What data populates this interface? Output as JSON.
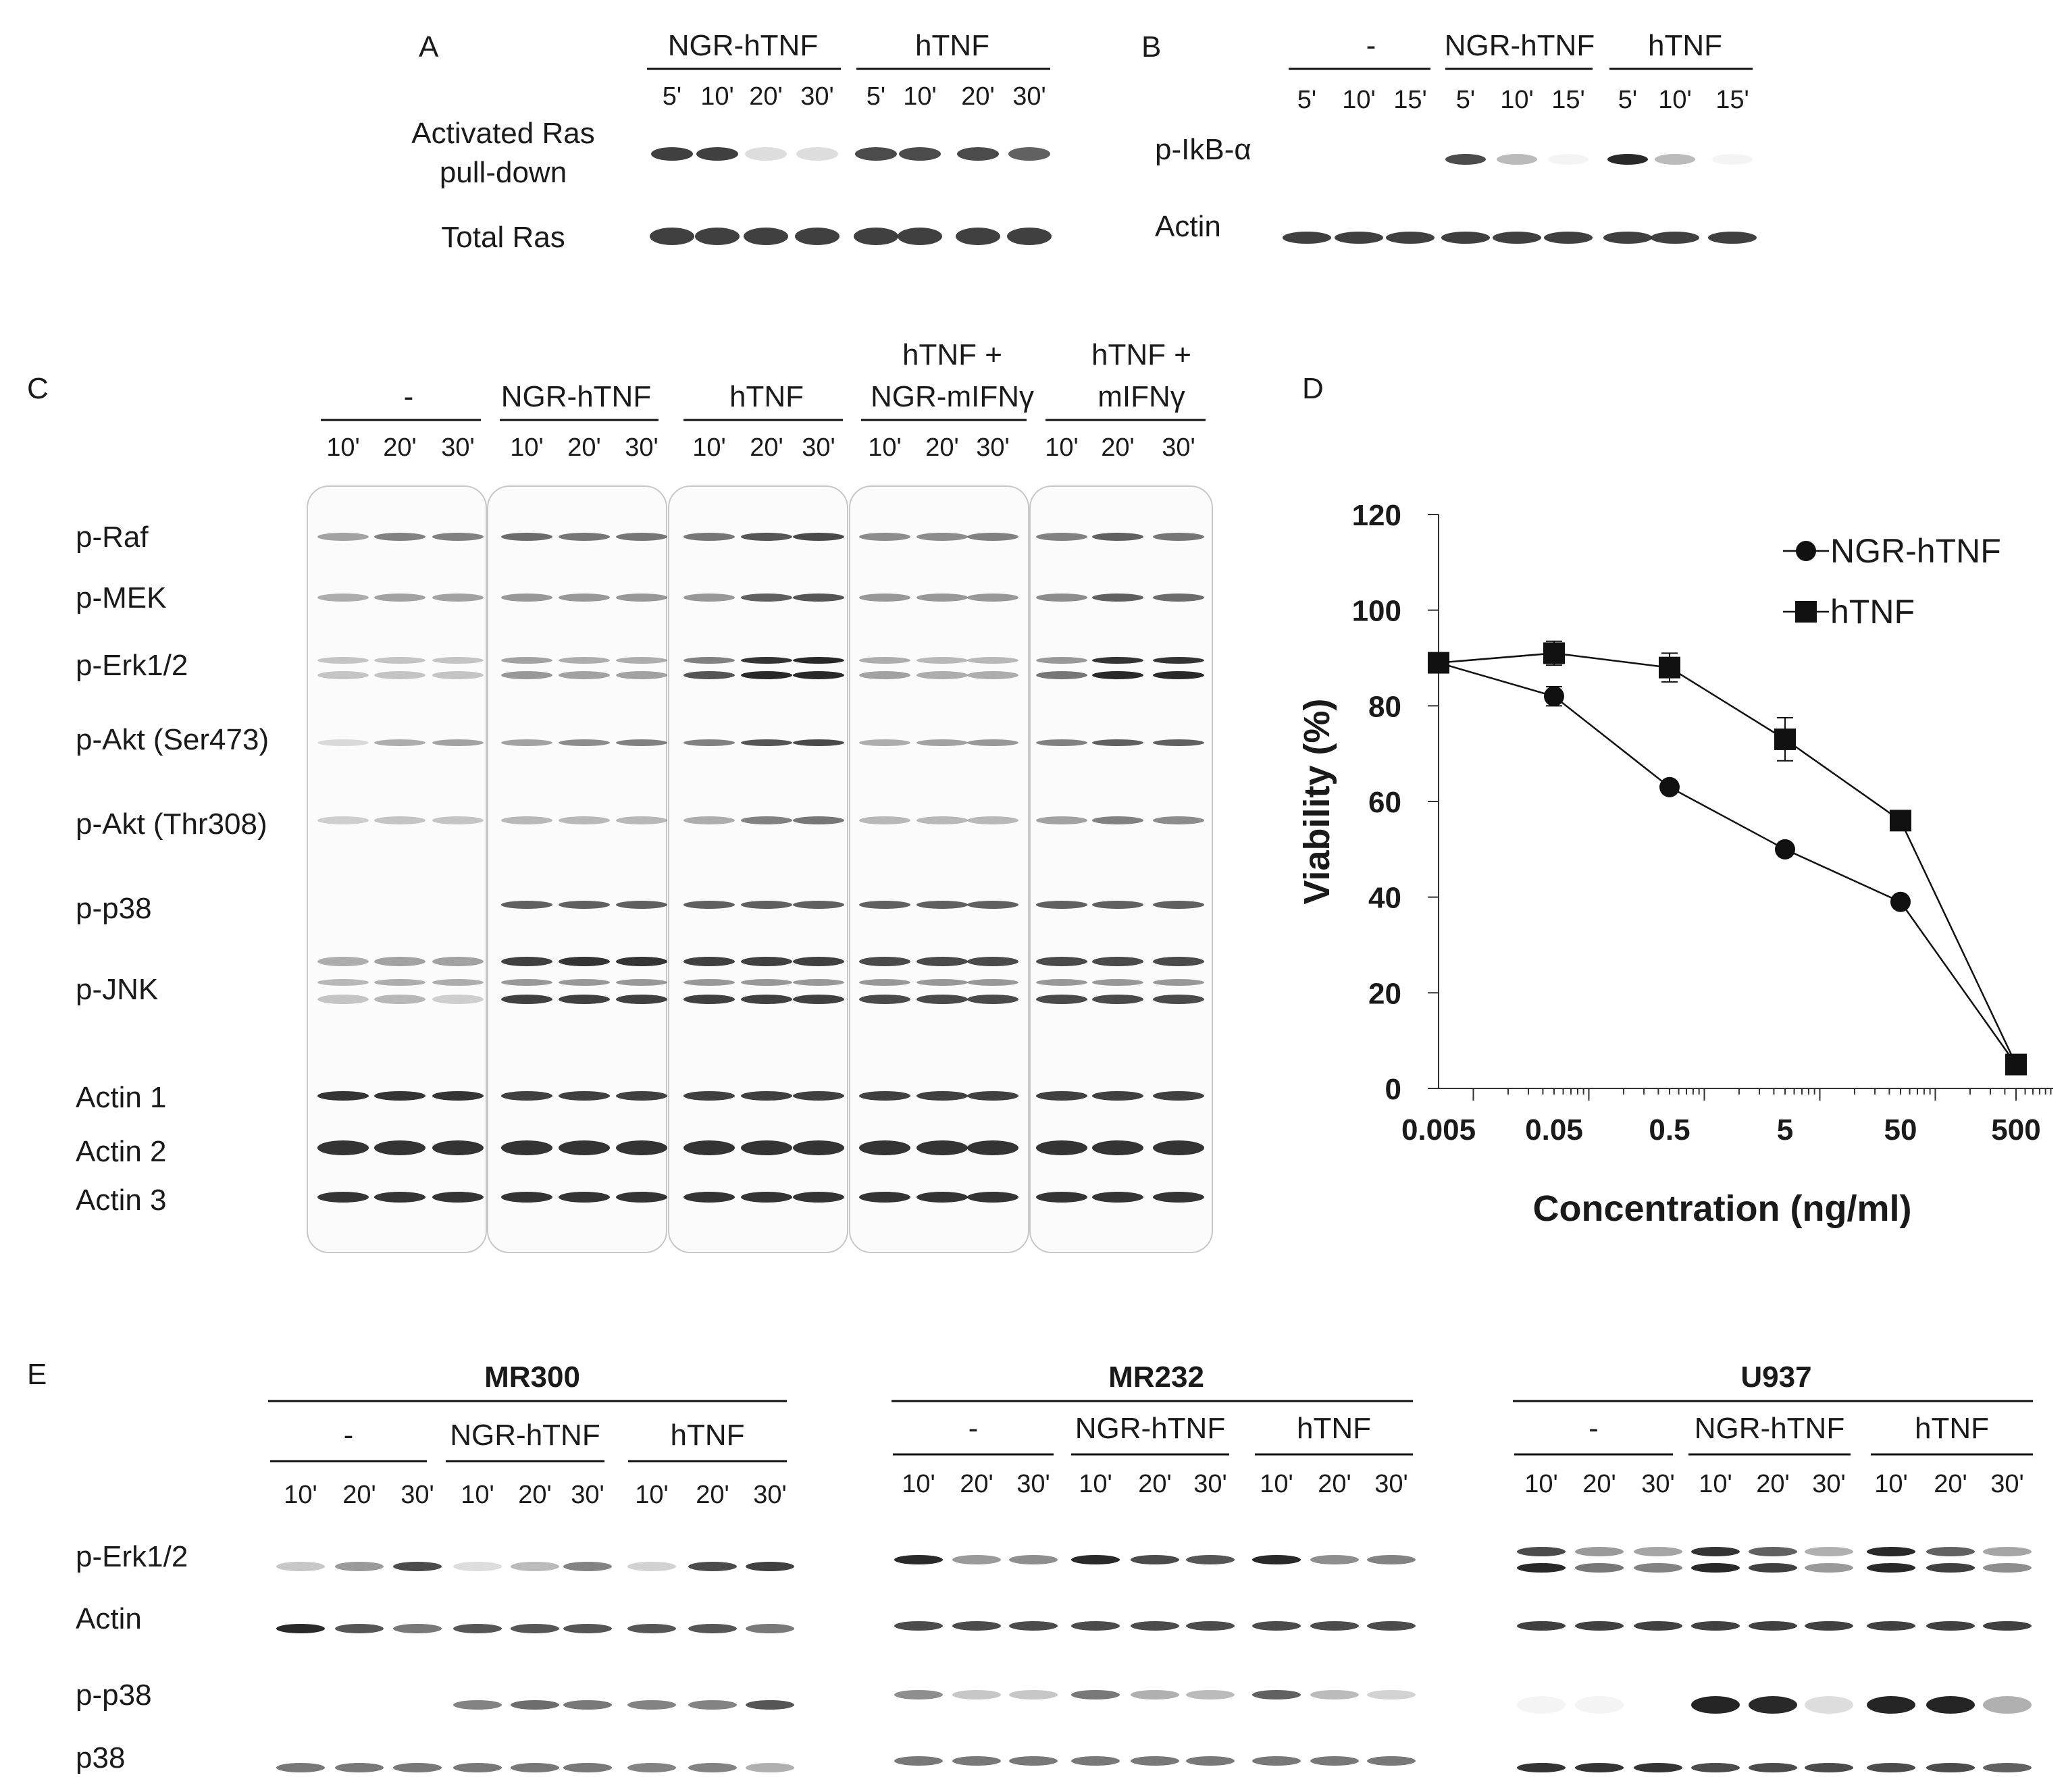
{
  "panelA": {
    "letter": "A",
    "groups": [
      "NGR-hTNF",
      "hTNF"
    ],
    "times": [
      "5'",
      "10'",
      "20'",
      "30'",
      "5'",
      "10'",
      "20'",
      "30'"
    ],
    "rows": [
      "Activated Ras",
      "pull-down",
      "Total Ras"
    ]
  },
  "panelB": {
    "letter": "B",
    "groups": [
      "-",
      "NGR-hTNF",
      "hTNF"
    ],
    "times": [
      "5'",
      "10'",
      "15'",
      "5'",
      "10'",
      "15'",
      "5'",
      "10'",
      "15'"
    ],
    "rows": [
      "p-IkB-α",
      "Actin"
    ]
  },
  "panelC": {
    "letter": "C",
    "groups": [
      "-",
      "NGR-hTNF",
      "hTNF",
      "hTNF +",
      "NGR-mIFNγ",
      "hTNF +",
      "mIFNγ"
    ],
    "times": [
      "10'",
      "20'",
      "30'",
      "10'",
      "20'",
      "30'",
      "10'",
      "20'",
      "30'",
      "10'",
      "20'",
      "30'",
      "10'",
      "20'",
      "30'"
    ],
    "rows": [
      "p-Raf",
      "p-MEK",
      "p-Erk1/2",
      "p-Akt (Ser473)",
      "p-Akt (Thr308)",
      "p-p38",
      "p-JNK",
      "Actin 1",
      "Actin 2",
      "Actin 3"
    ]
  },
  "panelD": {
    "letter": "D"
  },
  "panelE": {
    "letter": "E",
    "cells": [
      "MR300",
      "MR232",
      "U937"
    ],
    "groups": [
      "-",
      "NGR-hTNF",
      "hTNF"
    ],
    "times": [
      "10'",
      "20'",
      "30'",
      "10'",
      "20'",
      "30'",
      "10'",
      "20'",
      "30'"
    ],
    "rows": [
      "p-Erk1/2",
      "Actin",
      "p-p38",
      "p38"
    ]
  },
  "chart_data": {
    "type": "line",
    "title": "",
    "xlabel": "Concentration (ng/ml)",
    "ylabel": "Viability (%)",
    "xscale": "log",
    "xticks": [
      0.005,
      0.05,
      0.5,
      5,
      50,
      500
    ],
    "xtick_labels": [
      "0.005",
      "0.05",
      "0.5",
      "5",
      "50",
      "500"
    ],
    "yticks": [
      0,
      20,
      40,
      60,
      80,
      100,
      120
    ],
    "ytick_labels": [
      "0",
      "20",
      "40",
      "60",
      "80",
      "100",
      "120"
    ],
    "ylim": [
      0,
      120
    ],
    "legend_position": "top-right",
    "series": [
      {
        "name": "NGR-hTNF",
        "marker": "circle",
        "x": [
          0.005,
          0.05,
          0.5,
          5,
          50,
          500
        ],
        "y": [
          89,
          82,
          63,
          50,
          39,
          5
        ],
        "err": [
          0,
          2,
          0,
          0,
          0,
          0
        ]
      },
      {
        "name": "hTNF",
        "marker": "square",
        "x": [
          0.005,
          0.05,
          0.5,
          5,
          50,
          500
        ],
        "y": [
          89,
          91,
          88,
          73,
          56,
          5
        ],
        "err": [
          0,
          2.5,
          3,
          4.5,
          0,
          0
        ]
      }
    ]
  }
}
